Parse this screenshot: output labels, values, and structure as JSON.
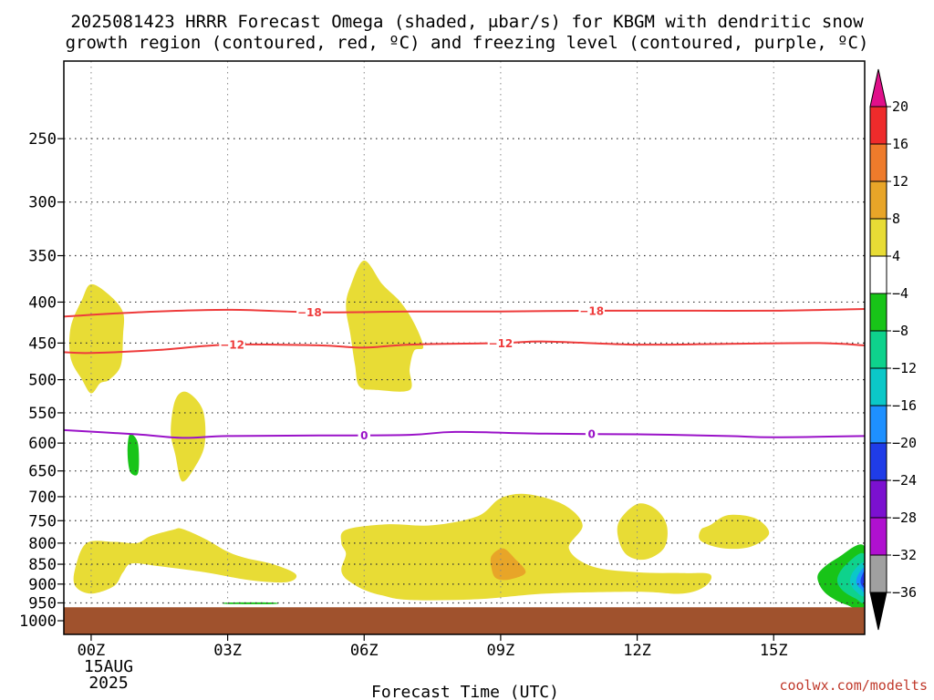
{
  "chart_data": {
    "type": "heatmap",
    "title_lines": [
      "2025081423 HRRR Forecast Omega (shaded, μbar/s) for KBGM with dendritic snow",
      "growth region (contoured, red, ºC) and freezing level (contoured, purple, ºC)"
    ],
    "xlabel": "Forecast Time (UTC)",
    "x_ticks": [
      "00Z",
      "03Z",
      "06Z",
      "09Z",
      "12Z",
      "15Z"
    ],
    "x_tick_hours": [
      0,
      3,
      6,
      9,
      12,
      15
    ],
    "x_date_label": [
      "15AUG",
      "2025"
    ],
    "xlim_hours": [
      -0.6,
      17
    ],
    "y_ticks": [
      250,
      300,
      350,
      400,
      450,
      500,
      550,
      600,
      650,
      700,
      750,
      800,
      850,
      900,
      950,
      1000
    ],
    "y_scale": "log",
    "ylim_hpa": [
      200,
      1040
    ],
    "ground_level_hpa": 962,
    "grid": true,
    "colorbar": {
      "labels": [
        "20",
        "16",
        "12",
        "8",
        "4",
        "−4",
        "−8",
        "−12",
        "−16",
        "−20",
        "−24",
        "−28",
        "−32",
        "−36"
      ],
      "colors": [
        "#ee2b2b",
        "#ee7b2b",
        "#e8a528",
        "#e8dc35",
        "#ffffff",
        "#18c418",
        "#0ed28c",
        "#0bc8c8",
        "#1e90ff",
        "#1f3ce8",
        "#7b10d0",
        "#b010d0",
        "#a0a0a0"
      ],
      "top_color": "#e0108a",
      "bottom_color": "#000000"
    },
    "contours": [
      {
        "color": "#ee3b3b",
        "label": "−18",
        "label_hours": [
          4.8,
          11.0
        ],
        "points": [
          [
            -0.6,
            417
          ],
          [
            1.0,
            412
          ],
          [
            3.0,
            409
          ],
          [
            5.0,
            412
          ],
          [
            7.0,
            411
          ],
          [
            9.0,
            411
          ],
          [
            11.0,
            410
          ],
          [
            13.0,
            410
          ],
          [
            15.0,
            410
          ],
          [
            17.0,
            408
          ]
        ]
      },
      {
        "color": "#ee3b3b",
        "label": "−12",
        "label_hours": [
          3.1,
          9.0
        ],
        "points": [
          [
            -0.6,
            462
          ],
          [
            0.0,
            463
          ],
          [
            1.5,
            459
          ],
          [
            3.0,
            452
          ],
          [
            5.0,
            453
          ],
          [
            6.0,
            456
          ],
          [
            7.0,
            452
          ],
          [
            9.0,
            450
          ],
          [
            10.0,
            448
          ],
          [
            12.0,
            452
          ],
          [
            14.0,
            451
          ],
          [
            16.0,
            450
          ],
          [
            17.0,
            453
          ]
        ]
      },
      {
        "color": "#9a12c8",
        "label": "0",
        "label_hours": [
          6.0,
          11.0
        ],
        "points": [
          [
            -0.6,
            578
          ],
          [
            1.0,
            585
          ],
          [
            2.0,
            591
          ],
          [
            3.0,
            588
          ],
          [
            5.0,
            587
          ],
          [
            7.0,
            586
          ],
          [
            8.0,
            581
          ],
          [
            10.0,
            584
          ],
          [
            12.0,
            585
          ],
          [
            14.0,
            588
          ],
          [
            15.0,
            590
          ],
          [
            17.0,
            588
          ]
        ]
      }
    ],
    "omega_regions": [
      {
        "level": "4 to 8",
        "color": "#e8dc35",
        "points": [
          [
            -0.45,
            430
          ],
          [
            -0.2,
            397
          ],
          [
            0.0,
            380
          ],
          [
            0.4,
            392
          ],
          [
            0.7,
            412
          ],
          [
            0.7,
            440
          ],
          [
            0.65,
            480
          ],
          [
            0.4,
            500
          ],
          [
            0.2,
            505
          ],
          [
            0.0,
            520
          ],
          [
            -0.2,
            500
          ],
          [
            -0.45,
            470
          ]
        ]
      },
      {
        "level": "4 to 8",
        "color": "#e8dc35",
        "points": [
          [
            6.0,
            355
          ],
          [
            6.4,
            380
          ],
          [
            6.8,
            400
          ],
          [
            7.1,
            425
          ],
          [
            7.3,
            455
          ],
          [
            7.1,
            460
          ],
          [
            7.0,
            485
          ],
          [
            7.0,
            515
          ],
          [
            6.3,
            515
          ],
          [
            5.9,
            510
          ],
          [
            5.8,
            480
          ],
          [
            5.7,
            440
          ],
          [
            5.6,
            405
          ],
          [
            5.7,
            382
          ]
        ]
      },
      {
        "level": "4 to 8",
        "color": "#e8dc35",
        "points": [
          [
            1.85,
            530
          ],
          [
            2.1,
            518
          ],
          [
            2.45,
            545
          ],
          [
            2.5,
            600
          ],
          [
            2.3,
            640
          ],
          [
            2.0,
            670
          ],
          [
            1.85,
            620
          ],
          [
            1.75,
            580
          ]
        ]
      },
      {
        "level": "4 to 8",
        "color": "#e8dc35",
        "points": [
          [
            -0.35,
            860
          ],
          [
            -0.1,
            800
          ],
          [
            0.5,
            797
          ],
          [
            1.0,
            800
          ],
          [
            1.3,
            784
          ],
          [
            1.8,
            770
          ],
          [
            2.0,
            768
          ],
          [
            2.5,
            790
          ],
          [
            3.0,
            820
          ],
          [
            3.4,
            835
          ],
          [
            4.0,
            850
          ],
          [
            4.5,
            875
          ],
          [
            4.3,
            895
          ],
          [
            3.5,
            890
          ],
          [
            2.5,
            870
          ],
          [
            1.5,
            855
          ],
          [
            0.9,
            848
          ],
          [
            0.7,
            870
          ],
          [
            0.5,
            905
          ],
          [
            0.0,
            925
          ],
          [
            -0.35,
            905
          ]
        ]
      },
      {
        "level": "4 to 8",
        "color": "#e8dc35",
        "points": [
          [
            5.6,
            770
          ],
          [
            6.5,
            758
          ],
          [
            7.5,
            760
          ],
          [
            8.5,
            740
          ],
          [
            9.0,
            703
          ],
          [
            9.6,
            695
          ],
          [
            10.4,
            717
          ],
          [
            10.8,
            760
          ],
          [
            10.5,
            812
          ],
          [
            11.0,
            855
          ],
          [
            12.0,
            870
          ],
          [
            13.0,
            872
          ],
          [
            13.6,
            875
          ],
          [
            13.5,
            905
          ],
          [
            13.0,
            925
          ],
          [
            12.0,
            920
          ],
          [
            10.0,
            925
          ],
          [
            8.5,
            940
          ],
          [
            7.0,
            942
          ],
          [
            6.4,
            930
          ],
          [
            6.0,
            915
          ],
          [
            5.7,
            895
          ],
          [
            5.55,
            880
          ],
          [
            5.5,
            860
          ],
          [
            5.6,
            825
          ],
          [
            5.5,
            800
          ]
        ]
      },
      {
        "level": "4 to 8",
        "color": "#e8dc35",
        "points": [
          [
            12.0,
            715
          ],
          [
            12.4,
            725
          ],
          [
            12.65,
            760
          ],
          [
            12.6,
            810
          ],
          [
            12.2,
            838
          ],
          [
            11.8,
            830
          ],
          [
            11.6,
            795
          ],
          [
            11.6,
            752
          ]
        ]
      },
      {
        "level": "4 to 8",
        "color": "#e8dc35",
        "points": [
          [
            13.6,
            760
          ],
          [
            14.0,
            738
          ],
          [
            14.6,
            745
          ],
          [
            14.9,
            778
          ],
          [
            14.5,
            808
          ],
          [
            13.9,
            812
          ],
          [
            13.4,
            795
          ],
          [
            13.4,
            770
          ]
        ]
      },
      {
        "level": "8 to 12",
        "color": "#e8a528",
        "points": [
          [
            8.8,
            830
          ],
          [
            9.05,
            812
          ],
          [
            9.3,
            835
          ],
          [
            9.55,
            870
          ],
          [
            9.2,
            888
          ],
          [
            8.9,
            885
          ],
          [
            8.8,
            860
          ]
        ]
      },
      {
        "level": "-4 to -8",
        "color": "#18c418",
        "points": [
          [
            0.85,
            585
          ],
          [
            1.02,
            598
          ],
          [
            1.05,
            640
          ],
          [
            1.0,
            658
          ],
          [
            0.85,
            650
          ],
          [
            0.8,
            615
          ]
        ]
      },
      {
        "level": "-4 to -8",
        "color": "#18c418",
        "points": [
          [
            3.0,
            949
          ],
          [
            4.0,
            949
          ],
          [
            4.0,
            953
          ],
          [
            3.0,
            953
          ]
        ]
      },
      {
        "level": "-4 to -8",
        "color": "#18c418",
        "points": [
          [
            17.0,
            808
          ],
          [
            16.4,
            835
          ],
          [
            16.0,
            870
          ],
          [
            16.0,
            900
          ],
          [
            16.2,
            930
          ],
          [
            16.6,
            955
          ],
          [
            17.0,
            958
          ]
        ]
      },
      {
        "level": "-8 to -12",
        "color": "#0ed28c",
        "points": [
          [
            17.0,
            827
          ],
          [
            16.6,
            850
          ],
          [
            16.4,
            885
          ],
          [
            16.5,
            915
          ],
          [
            16.8,
            938
          ],
          [
            17.0,
            942
          ]
        ]
      },
      {
        "level": "-12 to -16",
        "color": "#0bc8c8",
        "points": [
          [
            17.0,
            848
          ],
          [
            16.75,
            868
          ],
          [
            16.68,
            895
          ],
          [
            16.8,
            918
          ],
          [
            17.0,
            928
          ]
        ]
      },
      {
        "level": "-16 to -20",
        "color": "#1e90ff",
        "points": [
          [
            17.0,
            860
          ],
          [
            16.85,
            878
          ],
          [
            16.82,
            898
          ],
          [
            16.92,
            913
          ],
          [
            17.0,
            918
          ]
        ]
      },
      {
        "level": "-20 to -24",
        "color": "#1f3ce8",
        "points": [
          [
            17.0,
            868
          ],
          [
            16.92,
            885
          ],
          [
            16.92,
            900
          ],
          [
            17.0,
            908
          ]
        ]
      }
    ]
  },
  "credit": "coolwx.com/modelts"
}
